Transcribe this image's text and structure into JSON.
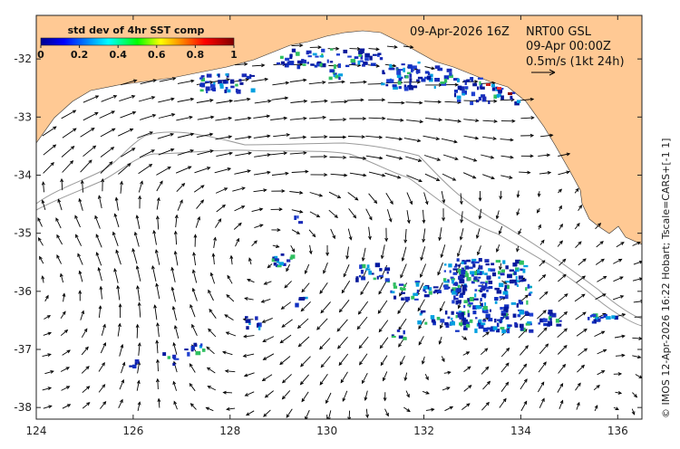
{
  "map": {
    "timestamp": "09-Apr-2026 16Z",
    "product": "NRT00 GSL",
    "current_time": "09-Apr 00:00Z",
    "vector_scale": "0.5m/s (1kt 24h)",
    "side_credit": "© IMOS 12-Apr-2026 16:22 Hobart; Tscale=CARS+[-1 1]",
    "colorbar_title": "std dev of 4hr SST comp",
    "colorbar_ticks": [
      "0",
      "0.2",
      "0.4",
      "0.6",
      "0.8",
      "1"
    ],
    "colorbar_range": [
      0,
      1
    ],
    "x_ticks": [
      124,
      126,
      128,
      130,
      132,
      134,
      136
    ],
    "y_ticks": [
      -32,
      -33,
      -34,
      -35,
      -36,
      -37,
      -38
    ],
    "lon_range": [
      124,
      136.5
    ],
    "lat_range": [
      -38.2,
      -31.25
    ],
    "colors": {
      "land": "#ffc994",
      "sea": "#ffffff",
      "arrows": "#000000",
      "isobath": "#9a9a9a",
      "cold_patch": "#1a2bb8"
    }
  }
}
